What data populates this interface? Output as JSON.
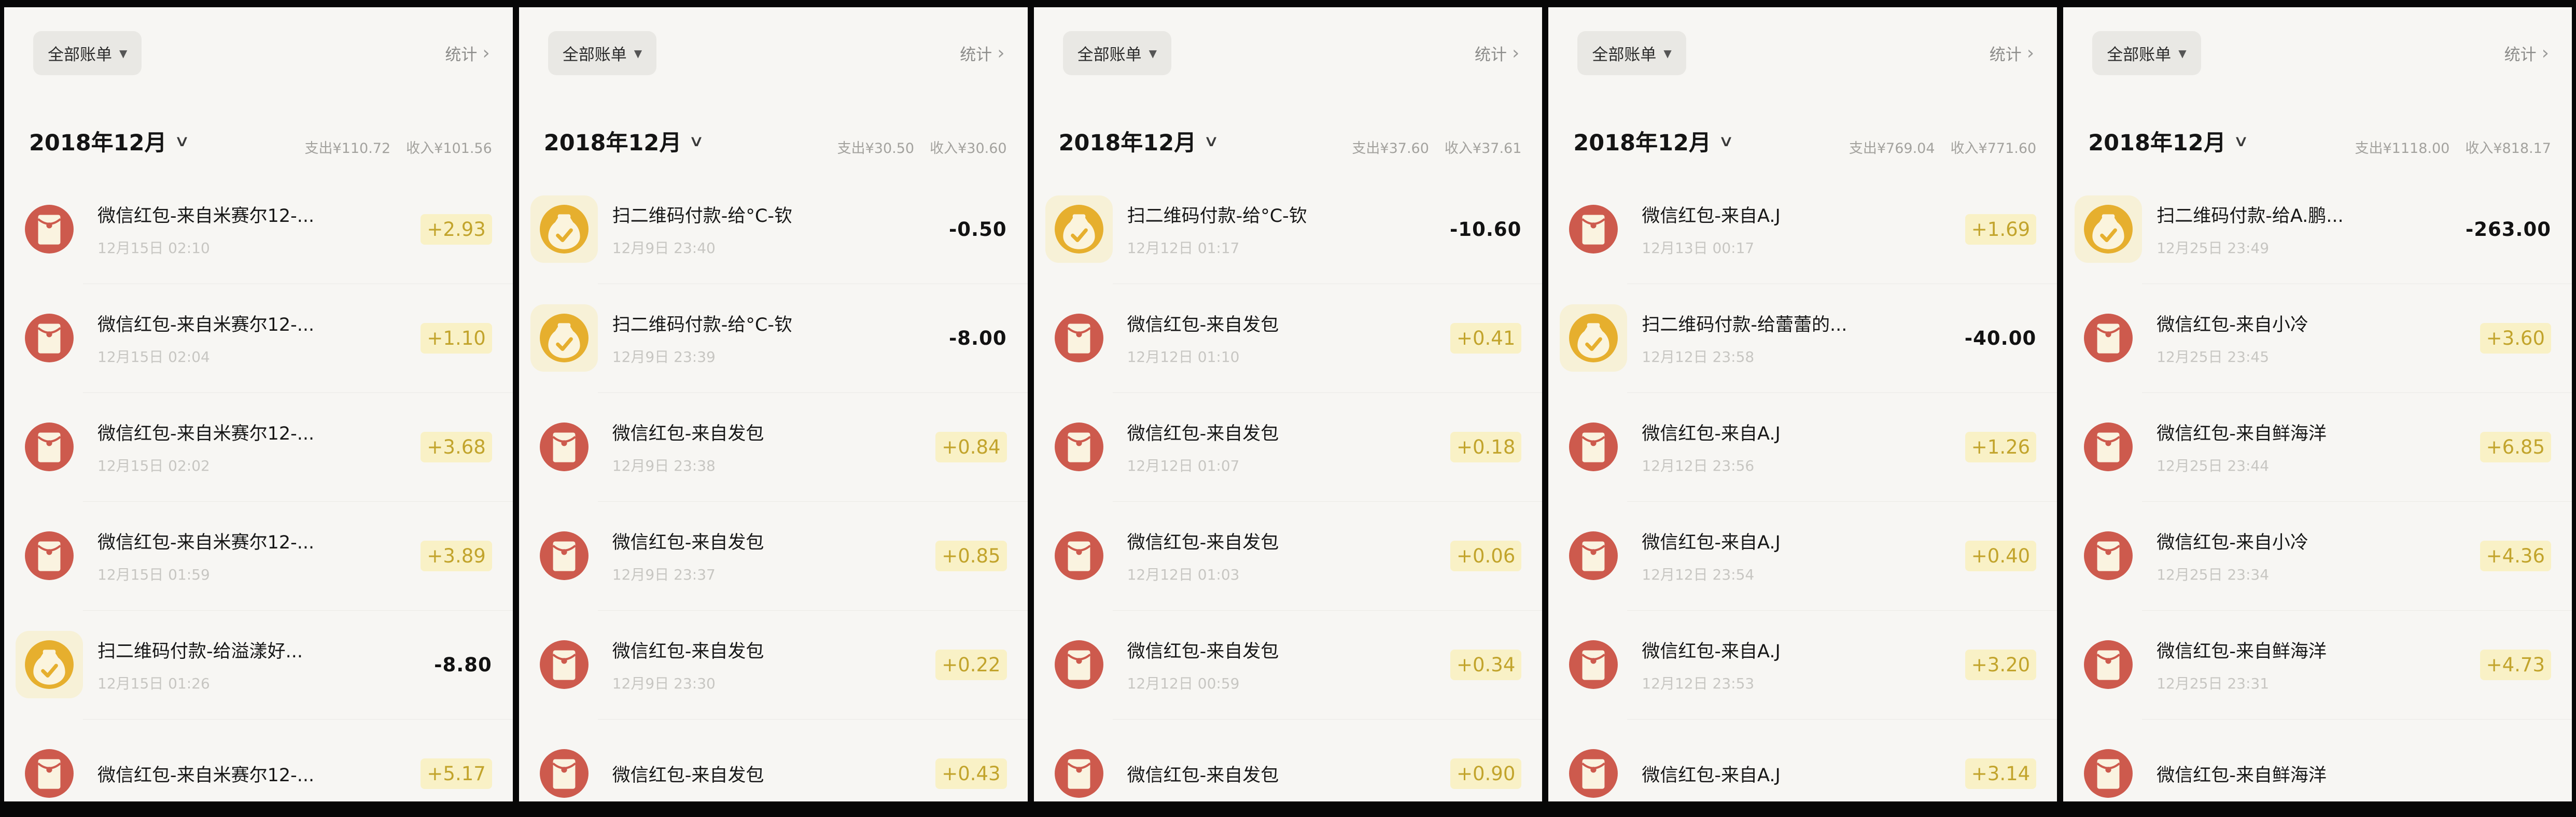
{
  "app": "wechat-wallet-bill",
  "accent_colors": {
    "red_packet_icon": "#cd5a4d",
    "money_bag_icon": "#e6af2e",
    "income_amount_text": "#c2a42c",
    "income_amount_highlight": "#f9f1c6",
    "expense_amount_text": "#121212",
    "panel_background": "#f7f6f3"
  },
  "panels": [
    {
      "filter_label": "全部账单",
      "filter_caret": "▼",
      "stats_label": "统计",
      "stats_chevron": "›",
      "month": "2018年12月",
      "month_chevron": "∨",
      "expense_total": "支出¥110.72",
      "income_total": "收入¥101.56",
      "rows": [
        {
          "icon": "red-packet",
          "title": "微信红包-来自米赛尔12-...",
          "date": "12月15日 02:10",
          "amount": "+2.93",
          "direction": "in"
        },
        {
          "icon": "red-packet",
          "title": "微信红包-来自米赛尔12-...",
          "date": "12月15日 02:04",
          "amount": "+1.10",
          "direction": "in"
        },
        {
          "icon": "red-packet",
          "title": "微信红包-来自米赛尔12-...",
          "date": "12月15日 02:02",
          "amount": "+3.68",
          "direction": "in"
        },
        {
          "icon": "red-packet",
          "title": "微信红包-来自米赛尔12-...",
          "date": "12月15日 01:59",
          "amount": "+3.89",
          "direction": "in"
        },
        {
          "icon": "money-bag",
          "title": "扫二维码付款-给溢漾好...",
          "date": "12月15日 01:26",
          "amount": "-8.80",
          "direction": "out"
        },
        {
          "icon": "red-packet",
          "title": "微信红包-来自米赛尔12-...",
          "date": "",
          "amount": "+5.17",
          "direction": "in"
        }
      ]
    },
    {
      "filter_label": "全部账单",
      "filter_caret": "▼",
      "stats_label": "统计",
      "stats_chevron": "›",
      "month": "2018年12月",
      "month_chevron": "∨",
      "expense_total": "支出¥30.50",
      "income_total": "收入¥30.60",
      "rows": [
        {
          "icon": "money-bag",
          "title": "扫二维码付款-给°C-钦",
          "date": "12月9日 23:40",
          "amount": "-0.50",
          "direction": "out"
        },
        {
          "icon": "money-bag",
          "title": "扫二维码付款-给°C-钦",
          "date": "12月9日 23:39",
          "amount": "-8.00",
          "direction": "out"
        },
        {
          "icon": "red-packet",
          "title": "微信红包-来自发包",
          "date": "12月9日 23:38",
          "amount": "+0.84",
          "direction": "in"
        },
        {
          "icon": "red-packet",
          "title": "微信红包-来自发包",
          "date": "12月9日 23:37",
          "amount": "+0.85",
          "direction": "in"
        },
        {
          "icon": "red-packet",
          "title": "微信红包-来自发包",
          "date": "12月9日 23:30",
          "amount": "+0.22",
          "direction": "in"
        },
        {
          "icon": "red-packet",
          "title": "微信红包-来自发包",
          "date": "",
          "amount": "+0.43",
          "direction": "in"
        }
      ]
    },
    {
      "filter_label": "全部账单",
      "filter_caret": "▼",
      "stats_label": "统计",
      "stats_chevron": "›",
      "month": "2018年12月",
      "month_chevron": "∨",
      "expense_total": "支出¥37.60",
      "income_total": "收入¥37.61",
      "rows": [
        {
          "icon": "money-bag",
          "title": "扫二维码付款-给°C-钦",
          "date": "12月12日 01:17",
          "amount": "-10.60",
          "direction": "out"
        },
        {
          "icon": "red-packet",
          "title": "微信红包-来自发包",
          "date": "12月12日 01:10",
          "amount": "+0.41",
          "direction": "in"
        },
        {
          "icon": "red-packet",
          "title": "微信红包-来自发包",
          "date": "12月12日 01:07",
          "amount": "+0.18",
          "direction": "in"
        },
        {
          "icon": "red-packet",
          "title": "微信红包-来自发包",
          "date": "12月12日 01:03",
          "amount": "+0.06",
          "direction": "in"
        },
        {
          "icon": "red-packet",
          "title": "微信红包-来自发包",
          "date": "12月12日 00:59",
          "amount": "+0.34",
          "direction": "in"
        },
        {
          "icon": "red-packet",
          "title": "微信红包-来自发包",
          "date": "",
          "amount": "+0.90",
          "direction": "in"
        }
      ]
    },
    {
      "filter_label": "全部账单",
      "filter_caret": "▼",
      "stats_label": "统计",
      "stats_chevron": "›",
      "month": "2018年12月",
      "month_chevron": "∨",
      "expense_total": "支出¥769.04",
      "income_total": "收入¥771.60",
      "rows": [
        {
          "icon": "red-packet",
          "title": "微信红包-来自A.J",
          "date": "12月13日 00:17",
          "amount": "+1.69",
          "direction": "in"
        },
        {
          "icon": "money-bag",
          "title": "扫二维码付款-给蕾蕾的...",
          "date": "12月12日 23:58",
          "amount": "-40.00",
          "direction": "out"
        },
        {
          "icon": "red-packet",
          "title": "微信红包-来自A.J",
          "date": "12月12日 23:56",
          "amount": "+1.26",
          "direction": "in"
        },
        {
          "icon": "red-packet",
          "title": "微信红包-来自A.J",
          "date": "12月12日 23:54",
          "amount": "+0.40",
          "direction": "in"
        },
        {
          "icon": "red-packet",
          "title": "微信红包-来自A.J",
          "date": "12月12日 23:53",
          "amount": "+3.20",
          "direction": "in"
        },
        {
          "icon": "red-packet",
          "title": "微信红包-来自A.J",
          "date": "",
          "amount": "+3.14",
          "direction": "in"
        }
      ]
    },
    {
      "filter_label": "全部账单",
      "filter_caret": "▼",
      "stats_label": "统计",
      "stats_chevron": "›",
      "month": "2018年12月",
      "month_chevron": "∨",
      "expense_total": "支出¥1118.00",
      "income_total": "收入¥818.17",
      "rows": [
        {
          "icon": "money-bag",
          "title": "扫二维码付款-给A.鹏...",
          "date": "12月25日 23:49",
          "amount": "-263.00",
          "direction": "out"
        },
        {
          "icon": "red-packet",
          "title": "微信红包-来自小冷",
          "date": "12月25日 23:45",
          "amount": "+3.60",
          "direction": "in"
        },
        {
          "icon": "red-packet",
          "title": "微信红包-来自鲜海洋",
          "date": "12月25日 23:44",
          "amount": "+6.85",
          "direction": "in"
        },
        {
          "icon": "red-packet",
          "title": "微信红包-来自小冷",
          "date": "12月25日 23:34",
          "amount": "+4.36",
          "direction": "in"
        },
        {
          "icon": "red-packet",
          "title": "微信红包-来自鲜海洋",
          "date": "12月25日 23:31",
          "amount": "+4.73",
          "direction": "in"
        },
        {
          "icon": "red-packet",
          "title": "微信红包-来自鲜海洋",
          "date": "",
          "amount": "",
          "direction": "in"
        }
      ]
    }
  ]
}
